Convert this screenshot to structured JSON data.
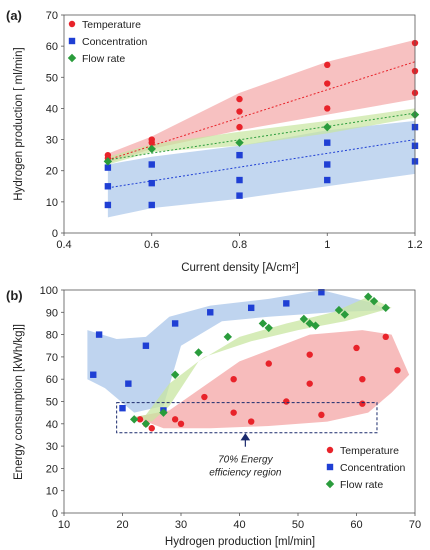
{
  "chart_data": [
    {
      "type": "scatter",
      "panel_label": "(a)",
      "xlabel": "Current density [A/cm²]",
      "ylabel": "Hydrogen production [ ml/min]",
      "xlim": [
        0.4,
        1.2
      ],
      "ylim": [
        0,
        70
      ],
      "xticks": [
        "0.4",
        "0.6",
        "0.8",
        "1",
        "1.2"
      ],
      "yticks": [
        "0",
        "10",
        "20",
        "30",
        "40",
        "50",
        "60",
        "70"
      ],
      "xtick_values": [
        0.4,
        0.6,
        0.8,
        1.0,
        1.2
      ],
      "ytick_values": [
        0,
        10,
        20,
        30,
        40,
        50,
        60,
        70
      ],
      "legend_position": "top-left",
      "series": [
        {
          "name": "Temperature",
          "marker": "circle",
          "color": "#e8232a",
          "band_color": "#f4a6a6",
          "x": [
            0.5,
            0.5,
            0.6,
            0.6,
            0.8,
            0.8,
            0.8,
            1.0,
            1.0,
            1.0,
            1.2,
            1.2,
            1.2
          ],
          "y": [
            24,
            25,
            29,
            30,
            34,
            39,
            43,
            40,
            48,
            54,
            45,
            52,
            61
          ],
          "band_upper": [
            [
              0.5,
              25.5
            ],
            [
              0.6,
              31
            ],
            [
              0.8,
              45
            ],
            [
              1.0,
              55
            ],
            [
              1.2,
              62
            ]
          ],
          "band_lower": [
            [
              0.5,
              22.5
            ],
            [
              0.6,
              27
            ],
            [
              0.8,
              33
            ],
            [
              1.0,
              38
            ],
            [
              1.2,
              43
            ]
          ],
          "trend": [
            [
              0.5,
              23.5
            ],
            [
              1.2,
              55
            ]
          ]
        },
        {
          "name": "Concentration",
          "marker": "square",
          "color": "#1f3fd4",
          "band_color": "#a9c6ea",
          "x": [
            0.5,
            0.5,
            0.5,
            0.6,
            0.6,
            0.6,
            0.8,
            0.8,
            0.8,
            1.0,
            1.0,
            1.0,
            1.2,
            1.2,
            1.2
          ],
          "y": [
            9,
            15,
            21,
            9,
            16,
            22,
            12,
            17,
            25,
            17,
            22,
            29,
            23,
            28,
            34
          ],
          "band_upper": [
            [
              0.5,
              22
            ],
            [
              0.6,
              24.5
            ],
            [
              0.8,
              28
            ],
            [
              1.0,
              33
            ],
            [
              1.2,
              36
            ]
          ],
          "band_lower": [
            [
              0.5,
              5
            ],
            [
              0.6,
              8
            ],
            [
              0.8,
              11
            ],
            [
              1.0,
              15
            ],
            [
              1.2,
              19
            ]
          ],
          "trend": [
            [
              0.5,
              14.5
            ],
            [
              1.2,
              30
            ]
          ]
        },
        {
          "name": "Flow rate",
          "marker": "diamond",
          "color": "#2a9c3c",
          "band_color": "#c8e6a0",
          "x": [
            0.5,
            0.6,
            0.8,
            1.0,
            1.2
          ],
          "y": [
            23,
            27,
            29,
            34,
            38
          ],
          "band_upper": [
            [
              0.5,
              24.5
            ],
            [
              0.6,
              28.5
            ],
            [
              0.8,
              32.5
            ],
            [
              1.0,
              36
            ],
            [
              1.2,
              40
            ]
          ],
          "band_lower": [
            [
              0.5,
              22
            ],
            [
              0.6,
              26
            ],
            [
              0.8,
              28
            ],
            [
              1.0,
              32
            ],
            [
              1.2,
              37
            ]
          ],
          "trend": [
            [
              0.5,
              23.5
            ],
            [
              1.2,
              38.5
            ]
          ]
        }
      ]
    },
    {
      "type": "scatter",
      "panel_label": "(b)",
      "xlabel": "Hydrogen production  [ml/min]",
      "ylabel": "Energy consumption [kWh/kg]]",
      "xlim": [
        10,
        70
      ],
      "ylim": [
        0,
        100
      ],
      "xticks": [
        "10",
        "20",
        "30",
        "40",
        "50",
        "60",
        "70"
      ],
      "yticks": [
        "0",
        "10",
        "20",
        "30",
        "40",
        "50",
        "60",
        "70",
        "80",
        "90",
        "100"
      ],
      "xtick_values": [
        10,
        20,
        30,
        40,
        50,
        60,
        70
      ],
      "ytick_values": [
        0,
        10,
        20,
        30,
        40,
        50,
        60,
        70,
        80,
        90,
        100
      ],
      "legend_position": "bottom-right",
      "annotation": {
        "lines": [
          "70% Energy",
          "efficiency region"
        ],
        "box_x": [
          19,
          63.5
        ],
        "box_y": [
          36,
          49.5
        ],
        "arrow_x": 41
      },
      "series": [
        {
          "name": "Temperature",
          "marker": "circle",
          "color": "#e8232a",
          "band_color": "#f4a6a6",
          "x": [
            23,
            24,
            25,
            29,
            30,
            34,
            39,
            39,
            42,
            45,
            48,
            52,
            52,
            54,
            60,
            61,
            61,
            65,
            67
          ],
          "y": [
            42,
            40,
            38,
            42,
            40,
            52,
            45,
            60,
            41,
            67,
            50,
            58,
            71,
            44,
            74,
            49,
            60,
            79,
            64
          ],
          "band": [
            [
              22,
              43
            ],
            [
              27,
              38
            ],
            [
              35,
              38
            ],
            [
              45,
              39
            ],
            [
              55,
              41
            ],
            [
              62,
              45
            ],
            [
              66,
              54
            ],
            [
              69,
              62
            ],
            [
              66,
              80
            ],
            [
              61,
              82
            ],
            [
              52,
              80
            ],
            [
              46,
              74
            ],
            [
              40,
              68
            ],
            [
              34,
              57
            ],
            [
              28,
              46
            ]
          ]
        },
        {
          "name": "Concentration",
          "marker": "square",
          "color": "#1f3fd4",
          "band_color": "#a9c6ea",
          "x": [
            15,
            16,
            20,
            21,
            24,
            27,
            29,
            35,
            42,
            48,
            54
          ],
          "y": [
            62,
            80,
            47,
            58,
            75,
            46,
            85,
            90,
            92,
            94,
            99
          ],
          "band": [
            [
              14,
              82
            ],
            [
              19,
              78
            ],
            [
              24,
              79
            ],
            [
              28,
              88
            ],
            [
              35,
              93
            ],
            [
              45,
              96
            ],
            [
              54,
              100
            ],
            [
              63,
              94
            ],
            [
              65,
              91
            ],
            [
              56,
              90
            ],
            [
              45,
              88
            ],
            [
              37,
              86
            ],
            [
              30,
              75
            ],
            [
              27,
              48
            ],
            [
              22,
              45
            ],
            [
              17,
              56
            ],
            [
              14,
              60
            ]
          ]
        },
        {
          "name": "Flow rate",
          "marker": "diamond",
          "color": "#2a9c3c",
          "band_color": "#c8e6a0",
          "x": [
            22,
            24,
            27,
            29,
            33,
            38,
            44,
            45,
            51,
            52,
            53,
            57,
            58,
            62,
            63,
            65
          ],
          "y": [
            42,
            40,
            45,
            62,
            72,
            79,
            85,
            83,
            87,
            85,
            84,
            91,
            89,
            97,
            95,
            92
          ],
          "band": [
            [
              22,
              43
            ],
            [
              25,
              41
            ],
            [
              28,
              48
            ],
            [
              33,
              68
            ],
            [
              40,
              79
            ],
            [
              48,
              85
            ],
            [
              56,
              90
            ],
            [
              62,
              97
            ],
            [
              66,
              92
            ],
            [
              58,
              86
            ],
            [
              50,
              82
            ],
            [
              42,
              77
            ],
            [
              34,
              70
            ],
            [
              28,
              58
            ],
            [
              24,
              44
            ]
          ]
        }
      ]
    }
  ]
}
